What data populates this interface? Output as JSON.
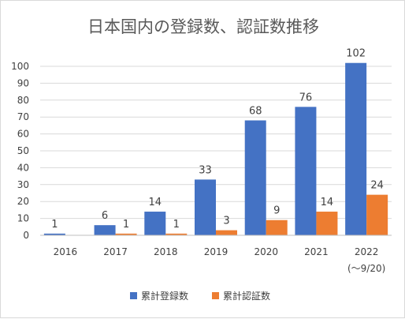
{
  "chart_data": {
    "type": "bar",
    "title": "日本国内の登録数、認証数推移",
    "categories": [
      "2016",
      "2017",
      "2018",
      "2019",
      "2020",
      "2021",
      "2022"
    ],
    "category_sublabels": [
      "",
      "",
      "",
      "",
      "",
      "",
      "(～9/20)"
    ],
    "series": [
      {
        "name": "累計登録数",
        "color": "#4472C4",
        "values": [
          1,
          6,
          14,
          33,
          68,
          76,
          102
        ]
      },
      {
        "name": "累計認証数",
        "color": "#ED7D31",
        "values": [
          null,
          1,
          1,
          3,
          9,
          14,
          24
        ]
      }
    ],
    "data_labels": [
      [
        "1",
        "6",
        "14",
        "33",
        "68",
        "76",
        "102"
      ],
      [
        "",
        "1",
        "1",
        "3",
        "9",
        "14",
        "24"
      ]
    ],
    "ylim": [
      0,
      100
    ],
    "yticks": [
      0,
      10,
      20,
      30,
      40,
      50,
      60,
      70,
      80,
      90,
      100
    ],
    "ytick_labels": [
      "0",
      "10",
      "20",
      "30",
      "40",
      "50",
      "60",
      "70",
      "80",
      "90",
      "100"
    ],
    "grid": true,
    "legend": "bottom"
  }
}
